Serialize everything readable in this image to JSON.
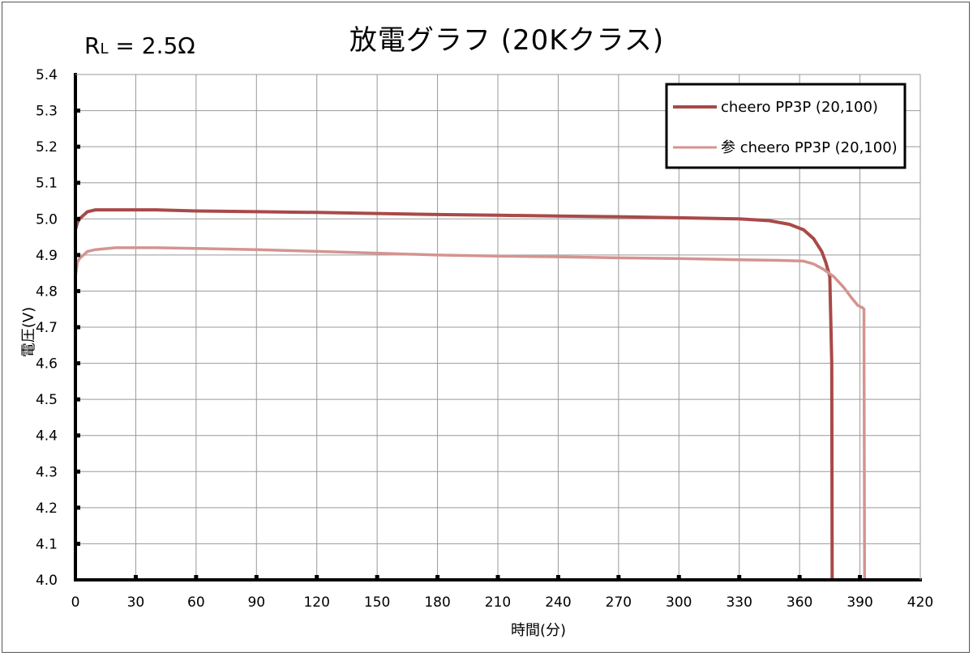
{
  "chart_data": {
    "type": "line",
    "title": "放電グラフ (20Kクラス)",
    "annotation": {
      "main": "R",
      "subscript": "L",
      "rest": " = 2.5Ω"
    },
    "xlabel": "時間(分)",
    "ylabel": "電圧(V)",
    "xlim": [
      0,
      420
    ],
    "ylim": [
      4.0,
      5.4
    ],
    "x_ticks": [
      "0",
      "30",
      "60",
      "90",
      "120",
      "150",
      "180",
      "210",
      "240",
      "270",
      "300",
      "330",
      "360",
      "390",
      "420"
    ],
    "y_ticks": [
      "4.0",
      "4.1",
      "4.2",
      "4.3",
      "4.4",
      "4.5",
      "4.6",
      "4.7",
      "4.8",
      "4.9",
      "5.0",
      "5.1",
      "5.2",
      "5.3",
      "5.4"
    ],
    "grid": true,
    "legend_position": "top-right",
    "series": [
      {
        "name": "cheero PP3P (20,100)",
        "color": "#A84A48",
        "x": [
          0,
          1,
          2,
          4,
          6,
          10,
          20,
          40,
          60,
          90,
          120,
          150,
          180,
          210,
          240,
          270,
          300,
          330,
          345,
          355,
          362,
          367,
          371,
          373,
          375,
          376,
          376.2
        ],
        "y": [
          4.97,
          4.99,
          5.0,
          5.01,
          5.02,
          5.025,
          5.025,
          5.025,
          5.022,
          5.02,
          5.018,
          5.015,
          5.012,
          5.01,
          5.008,
          5.006,
          5.003,
          5.0,
          4.995,
          4.985,
          4.97,
          4.945,
          4.91,
          4.88,
          4.84,
          4.6,
          4.0
        ]
      },
      {
        "name": "参 cheero PP3P (20,100)",
        "color": "#D49490",
        "x": [
          0,
          1,
          2,
          4,
          6,
          10,
          20,
          40,
          60,
          90,
          120,
          150,
          180,
          210,
          240,
          270,
          300,
          330,
          350,
          362,
          367,
          372,
          377,
          382,
          386,
          389,
          391,
          392,
          392.3
        ],
        "y": [
          4.84,
          4.88,
          4.89,
          4.9,
          4.91,
          4.915,
          4.92,
          4.92,
          4.918,
          4.915,
          4.91,
          4.905,
          4.9,
          4.897,
          4.895,
          4.892,
          4.89,
          4.887,
          4.885,
          4.883,
          4.875,
          4.86,
          4.84,
          4.81,
          4.78,
          4.76,
          4.755,
          4.75,
          4.0
        ]
      }
    ]
  }
}
